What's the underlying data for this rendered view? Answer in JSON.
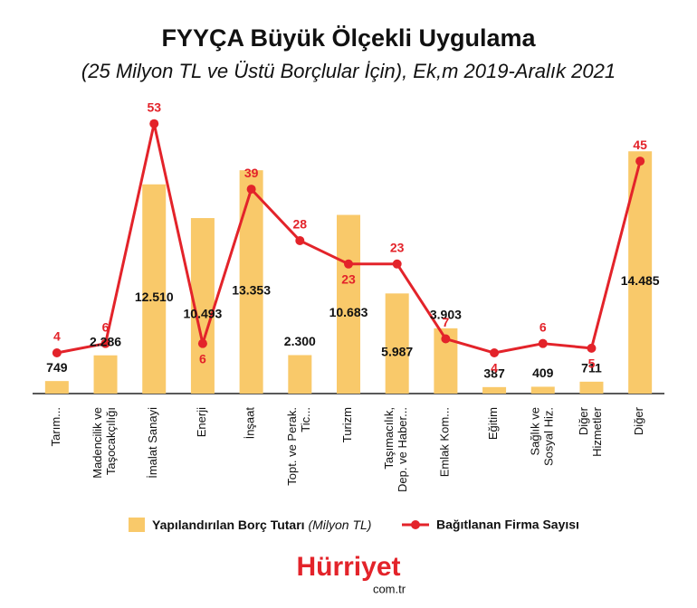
{
  "chart_data": {
    "type": "bar-line",
    "title": "FYYÇA Büyük Ölçekli Uygulama",
    "subtitle": "(25 Milyon TL ve Üstü Borçlular İçin), Ek,m 2019-Aralık 2021",
    "categories": [
      "Tarım...",
      "Madencilik ve\nTaşocakçılığı",
      "İmalat Sanayi",
      "Enerji",
      "İnşaat",
      "Topt. ve Perak.\nTic...",
      "Turizm",
      "Taşımacılık,\nDep. ve Haber...",
      "Emlak Kom...",
      "Eğitim",
      "Sağlık ve\nSosyal Hiz.",
      "Diğer\nHizmetler",
      "Diğer"
    ],
    "series": [
      {
        "name": "Yapılandırılan Borç Tutarı",
        "unit": "(Milyon TL)",
        "color": "#f9c96a",
        "type": "bar",
        "values": [
          749,
          2286,
          12510,
          10493,
          13353,
          2300,
          10683,
          5987,
          3903,
          387,
          409,
          711,
          14485
        ],
        "value_labels": [
          "749",
          "2.286",
          "12.510",
          "10.493",
          "13.353",
          "2.300",
          "10.683",
          "5.987",
          "3.903",
          "387",
          "409",
          "711",
          "14.485"
        ]
      },
      {
        "name": "Bağıtlanan Firma Sayısı",
        "color": "#e3232a",
        "type": "line",
        "axis": "y2",
        "values": [
          4,
          6,
          53,
          6,
          39,
          28,
          23,
          23,
          7,
          4,
          6,
          5,
          45
        ]
      }
    ],
    "ylim": [
      0,
      16500
    ],
    "y2lim": [
      -4.7,
      54.3
    ]
  },
  "logo": {
    "name": "Hürriyet",
    "domain": "com.tr"
  }
}
